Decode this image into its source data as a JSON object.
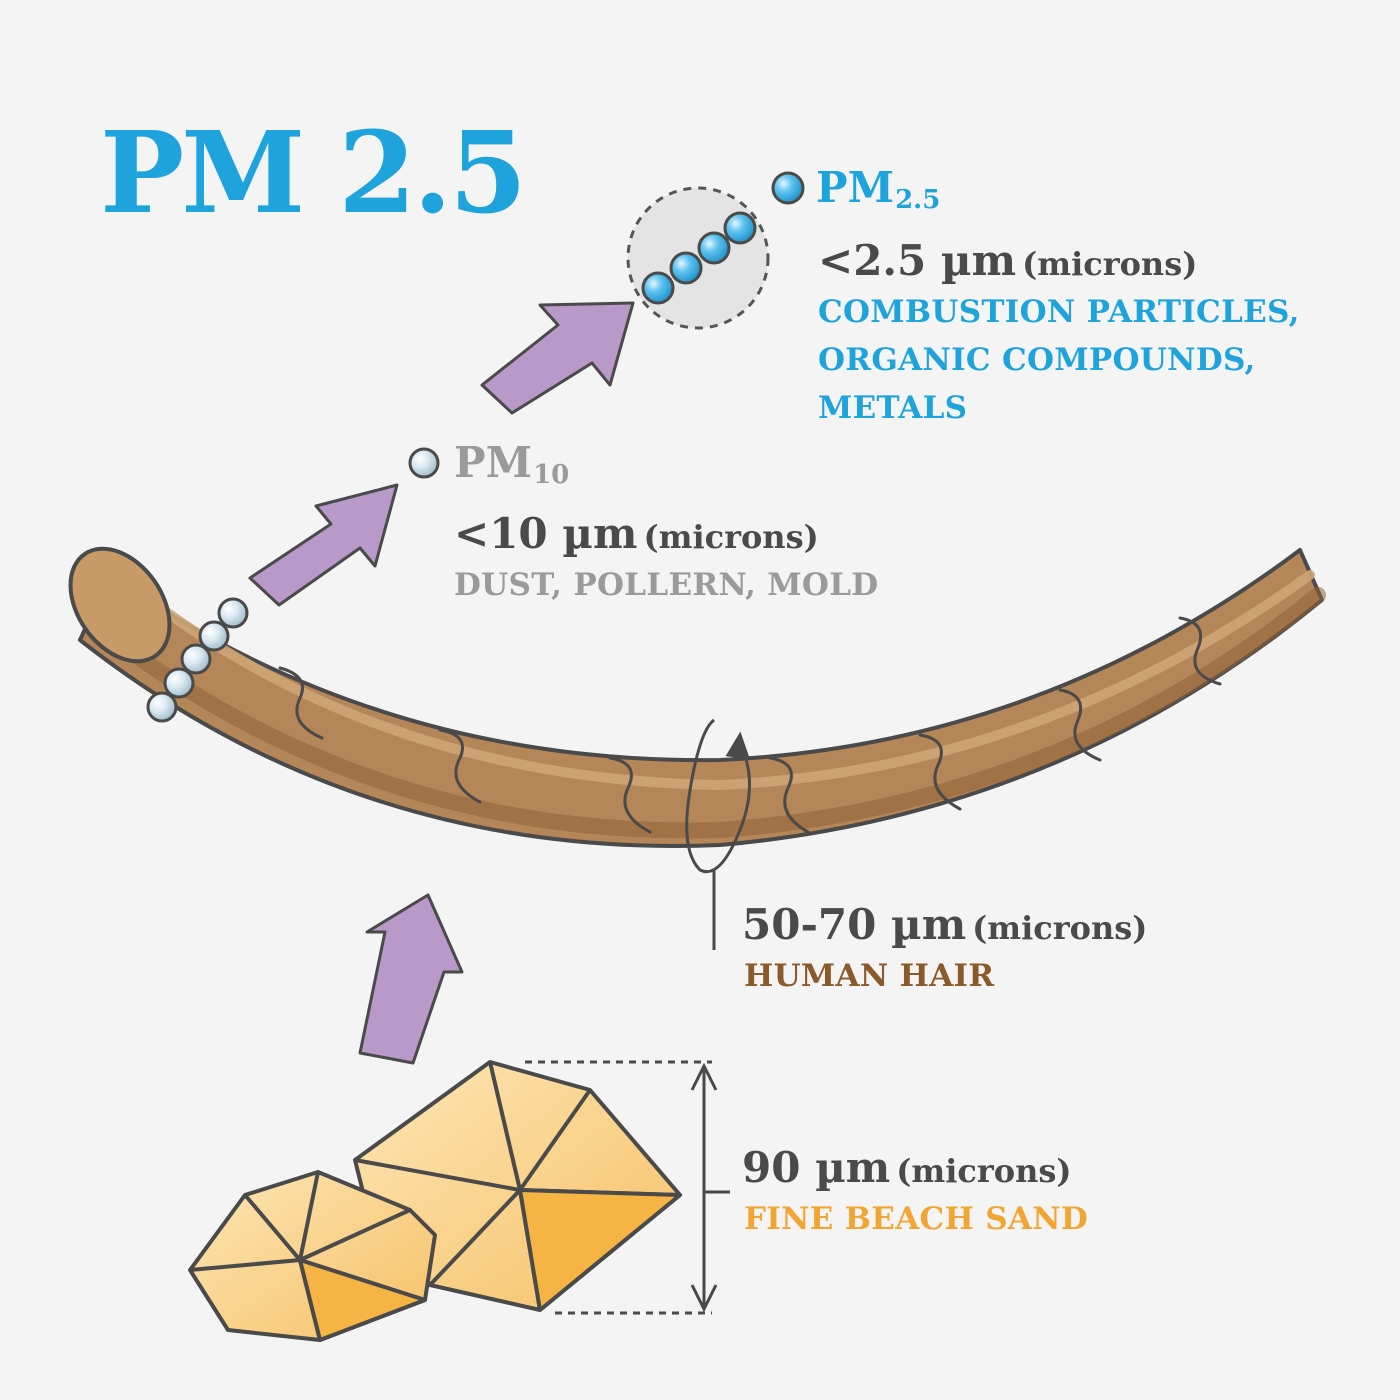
{
  "title": "PM 2.5",
  "colors": {
    "background": "#f4f4f4",
    "pm25": "#1ea3dc",
    "pm10": "#9a9a9a",
    "hair": "#8b5a2b",
    "sand": "#f2a533",
    "arrow": "#b899c9",
    "text_dark": "#4a4a4a"
  },
  "pm25": {
    "label": "PM",
    "label_sub": "2.5",
    "size": "<2.5 µm",
    "unit": "(microns)",
    "desc_lines": [
      "COMBUSTION PARTICLES,",
      "ORGANIC COMPOUNDS,",
      "METALS"
    ]
  },
  "pm10": {
    "label": "PM",
    "label_sub": "10",
    "size": "<10 µm",
    "unit": "(microns)",
    "desc": "DUST, POLLERN, MOLD"
  },
  "hair": {
    "size": "50-70 µm",
    "unit": "(microns)",
    "desc": "HUMAN HAIR"
  },
  "sand": {
    "size": "90 µm",
    "unit": "(microns)",
    "desc": "FINE BEACH SAND"
  },
  "icons": [
    "pm25-particle-icon",
    "pm10-particle-icon",
    "human-hair-icon",
    "sand-grain-icon",
    "size-arrow-icon"
  ]
}
